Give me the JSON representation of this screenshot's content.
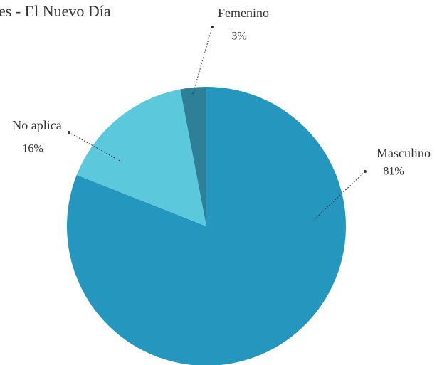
{
  "chart_data": {
    "type": "pie",
    "title": "es - El Nuevo Día",
    "categories": [
      "Masculino",
      "No aplica",
      "Femenino"
    ],
    "values": [
      81,
      16,
      3
    ],
    "value_labels": [
      "81%",
      "16%",
      "3%"
    ],
    "colors": [
      "#2596be",
      "#5bc8dc",
      "#2e8099"
    ]
  }
}
